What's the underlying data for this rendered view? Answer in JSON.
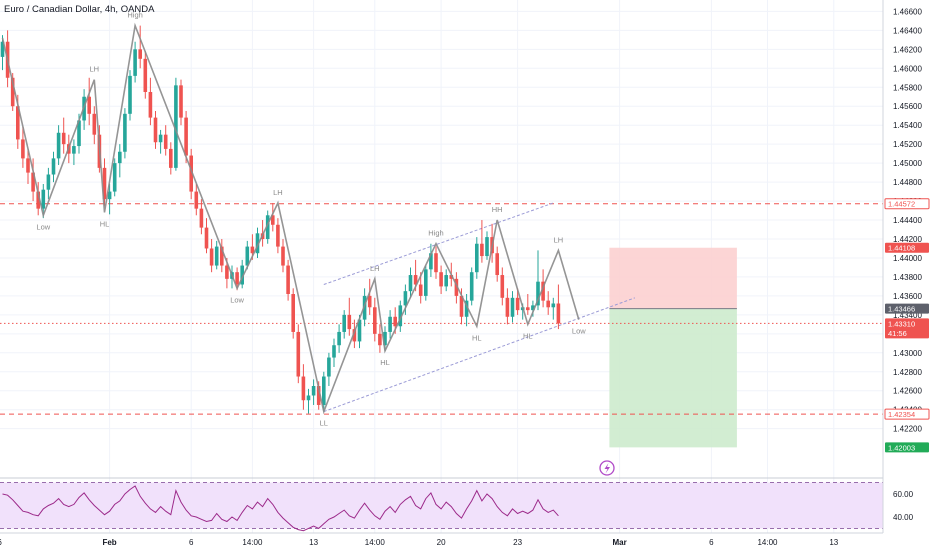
{
  "header": {
    "title": "Euro / Canadian Dollar, 4h, OANDA"
  },
  "colors": {
    "bull": "#26a69a",
    "bear": "#ef5350",
    "zigzag": "#8a8a8a",
    "channel": "#9b9bd6",
    "level": "#ef5350",
    "rsi_line": "#9c2a8a",
    "rsi_band": "#f1e1fb",
    "stop_zone": "#fcd0d0",
    "target_zone": "#cdebcd"
  },
  "chart_data": [
    {
      "type": "candlestick",
      "ylim": [
        1.4168,
        1.4672
      ],
      "x_index_range": [
        0,
        175
      ],
      "y_ticks": [
        "1.46600",
        "1.46400",
        "1.46200",
        "1.46000",
        "1.45800",
        "1.45600",
        "1.45400",
        "1.45200",
        "1.45000",
        "1.44800",
        "1.44600",
        "1.44400",
        "1.44200",
        "1.44000",
        "1.43800",
        "1.43600",
        "1.43400",
        "1.43200",
        "1.43000",
        "1.42800",
        "1.42600",
        "1.42400",
        "1.42200"
      ],
      "x_ticks": [
        {
          "i": -1,
          "label": "26"
        },
        {
          "i": 21,
          "label": "Feb"
        },
        {
          "i": 37,
          "label": "6"
        },
        {
          "i": 49,
          "label": "14:00"
        },
        {
          "i": 61,
          "label": "13"
        },
        {
          "i": 73,
          "label": "14:00"
        },
        {
          "i": 86,
          "label": "20"
        },
        {
          "i": 101,
          "label": "23"
        },
        {
          "i": 121,
          "label": "Mar"
        },
        {
          "i": 139,
          "label": "6"
        },
        {
          "i": 150,
          "label": "14:00"
        },
        {
          "i": 163,
          "label": "13"
        }
      ],
      "zigzag": [
        {
          "i": 0,
          "v": 1.4632
        },
        {
          "i": 8,
          "v": 1.4445
        },
        {
          "i": 18,
          "v": 1.4588
        },
        {
          "i": 20,
          "v": 1.4448
        },
        {
          "i": 26,
          "v": 1.4645
        },
        {
          "i": 46,
          "v": 1.4368
        },
        {
          "i": 54,
          "v": 1.4458
        },
        {
          "i": 63,
          "v": 1.4238
        },
        {
          "i": 73,
          "v": 1.4378
        },
        {
          "i": 75,
          "v": 1.4302
        },
        {
          "i": 85,
          "v": 1.4415
        },
        {
          "i": 93,
          "v": 1.4328
        },
        {
          "i": 97,
          "v": 1.444
        },
        {
          "i": 103,
          "v": 1.433
        },
        {
          "i": 109,
          "v": 1.4408
        },
        {
          "i": 113,
          "v": 1.4335
        }
      ],
      "pivot_labels": [
        {
          "text": "High",
          "i": 26,
          "v": 1.4645,
          "pos": "above"
        },
        {
          "text": "LH",
          "i": 18,
          "v": 1.4588,
          "pos": "above"
        },
        {
          "text": "Low",
          "i": 8,
          "v": 1.4445,
          "pos": "below"
        },
        {
          "text": "HL",
          "i": 20,
          "v": 1.4448,
          "pos": "below"
        },
        {
          "text": "LH",
          "i": 54,
          "v": 1.4458,
          "pos": "above"
        },
        {
          "text": "Low",
          "i": 46,
          "v": 1.4368,
          "pos": "below"
        },
        {
          "text": "LL",
          "i": 63,
          "v": 1.4238,
          "pos": "below"
        },
        {
          "text": "LH",
          "i": 73,
          "v": 1.4378,
          "pos": "above"
        },
        {
          "text": "HL",
          "i": 75,
          "v": 1.4302,
          "pos": "below"
        },
        {
          "text": "High",
          "i": 85,
          "v": 1.4415,
          "pos": "above"
        },
        {
          "text": "HL",
          "i": 93,
          "v": 1.4328,
          "pos": "below"
        },
        {
          "text": "HH",
          "i": 97,
          "v": 1.444,
          "pos": "above"
        },
        {
          "text": "HL",
          "i": 103,
          "v": 1.433,
          "pos": "below"
        },
        {
          "text": "LH",
          "i": 109,
          "v": 1.4408,
          "pos": "above"
        },
        {
          "text": "Low",
          "i": 113,
          "v": 1.4335,
          "pos": "below"
        }
      ],
      "channel": [
        {
          "name": "upper",
          "from": {
            "i": 63,
            "v": 1.4372
          },
          "to": {
            "i": 108,
            "v": 1.4458
          }
        },
        {
          "name": "lower",
          "from": {
            "i": 63,
            "v": 1.4238
          },
          "to": {
            "i": 124,
            "v": 1.4358
          }
        }
      ],
      "levels": [
        {
          "v": 1.44572,
          "label": "1.44572",
          "style": "dashed"
        },
        {
          "v": 1.42354,
          "label": "1.42354",
          "style": "dashed"
        },
        {
          "v": 1.4331,
          "label": "1.43310",
          "style": "dotted"
        }
      ],
      "price_tags": [
        {
          "v": 1.44572,
          "label": "1.44572",
          "bg": "#ffffff",
          "fg": "#ef5350",
          "border": "#ef5350"
        },
        {
          "v": 1.44108,
          "label": "1.44108",
          "bg": "#ef5350",
          "fg": "#ffffff"
        },
        {
          "v": 1.43466,
          "label": "1.43466",
          "bg": "#5d606b",
          "fg": "#ffffff"
        },
        {
          "v": 1.4331,
          "label": "1.43310",
          "sub": "41:56",
          "bg": "#ef5350",
          "fg": "#ffffff"
        },
        {
          "v": 1.42354,
          "label": "1.42354",
          "bg": "#ffffff",
          "fg": "#ef5350",
          "border": "#ef5350"
        },
        {
          "v": 1.42003,
          "label": "1.42003",
          "bg": "#22ab58",
          "fg": "#ffffff"
        }
      ],
      "position": {
        "from_i": 119,
        "to_i": 144,
        "stop": 1.44108,
        "entry": 1.43466,
        "target": 1.42003
      },
      "candles": [
        [
          1.4612,
          1.4635,
          1.4598,
          1.4628
        ],
        [
          1.4628,
          1.464,
          1.458,
          1.459
        ],
        [
          1.459,
          1.4595,
          1.4555,
          1.456
        ],
        [
          1.456,
          1.4572,
          1.4515,
          1.4525
        ],
        [
          1.4525,
          1.4538,
          1.4495,
          1.4505
        ],
        [
          1.4505,
          1.4515,
          1.4478,
          1.449
        ],
        [
          1.449,
          1.4505,
          1.446,
          1.447
        ],
        [
          1.447,
          1.448,
          1.4445,
          1.4452
        ],
        [
          1.4452,
          1.4478,
          1.4442,
          1.4472
        ],
        [
          1.4472,
          1.4495,
          1.4462,
          1.4488
        ],
        [
          1.4488,
          1.4512,
          1.448,
          1.4505
        ],
        [
          1.4505,
          1.454,
          1.4498,
          1.4532
        ],
        [
          1.4532,
          1.4548,
          1.451,
          1.452
        ],
        [
          1.452,
          1.453,
          1.45,
          1.451
        ],
        [
          1.451,
          1.4525,
          1.4498,
          1.4518
        ],
        [
          1.4518,
          1.4552,
          1.451,
          1.4545
        ],
        [
          1.4545,
          1.4578,
          1.4535,
          1.457
        ],
        [
          1.457,
          1.459,
          1.454,
          1.4552
        ],
        [
          1.4552,
          1.456,
          1.452,
          1.453
        ],
        [
          1.453,
          1.454,
          1.449,
          1.4495
        ],
        [
          1.4495,
          1.4505,
          1.4455,
          1.4462
        ],
        [
          1.4462,
          1.4478,
          1.4446,
          1.447
        ],
        [
          1.447,
          1.4505,
          1.4465,
          1.45
        ],
        [
          1.45,
          1.452,
          1.4485,
          1.4512
        ],
        [
          1.4512,
          1.4558,
          1.4505,
          1.4552
        ],
        [
          1.4552,
          1.4598,
          1.4545,
          1.4592
        ],
        [
          1.4592,
          1.4628,
          1.4585,
          1.462
        ],
        [
          1.462,
          1.4645,
          1.46,
          1.461
        ],
        [
          1.461,
          1.4618,
          1.4568,
          1.4575
        ],
        [
          1.4575,
          1.459,
          1.454,
          1.4548
        ],
        [
          1.4548,
          1.4555,
          1.4515,
          1.4522
        ],
        [
          1.4522,
          1.4535,
          1.451,
          1.453
        ],
        [
          1.453,
          1.454,
          1.4508,
          1.4515
        ],
        [
          1.4515,
          1.4522,
          1.4488,
          1.4495
        ],
        [
          1.4495,
          1.459,
          1.4492,
          1.4582
        ],
        [
          1.4582,
          1.4588,
          1.454,
          1.4548
        ],
        [
          1.4548,
          1.4555,
          1.45,
          1.4508
        ],
        [
          1.4508,
          1.4515,
          1.4462,
          1.447
        ],
        [
          1.447,
          1.4478,
          1.4445,
          1.4452
        ],
        [
          1.4452,
          1.4462,
          1.4425,
          1.4432
        ],
        [
          1.4432,
          1.4442,
          1.4405,
          1.441
        ],
        [
          1.441,
          1.442,
          1.4385,
          1.4392
        ],
        [
          1.4392,
          1.4418,
          1.4388,
          1.4412
        ],
        [
          1.4412,
          1.442,
          1.4385,
          1.4392
        ],
        [
          1.4392,
          1.44,
          1.4368,
          1.4378
        ],
        [
          1.4378,
          1.4392,
          1.4368,
          1.4385
        ],
        [
          1.4385,
          1.439,
          1.4366,
          1.4372
        ],
        [
          1.4372,
          1.4398,
          1.4368,
          1.4392
        ],
        [
          1.4392,
          1.4418,
          1.4388,
          1.4412
        ],
        [
          1.4412,
          1.4425,
          1.4398,
          1.4405
        ],
        [
          1.4405,
          1.4432,
          1.44,
          1.4426
        ],
        [
          1.4426,
          1.444,
          1.4412,
          1.442
        ],
        [
          1.442,
          1.445,
          1.4415,
          1.4445
        ],
        [
          1.4445,
          1.4458,
          1.4428,
          1.4435
        ],
        [
          1.4435,
          1.4442,
          1.4405,
          1.4412
        ],
        [
          1.4412,
          1.442,
          1.4385,
          1.4392
        ],
        [
          1.4392,
          1.4398,
          1.4355,
          1.4362
        ],
        [
          1.4362,
          1.4368,
          1.4315,
          1.4322
        ],
        [
          1.4322,
          1.433,
          1.4268,
          1.4275
        ],
        [
          1.4275,
          1.4288,
          1.424,
          1.425
        ],
        [
          1.425,
          1.4262,
          1.4236,
          1.4255
        ],
        [
          1.4255,
          1.4272,
          1.4245,
          1.4265
        ],
        [
          1.4265,
          1.427,
          1.424,
          1.4245
        ],
        [
          1.4245,
          1.428,
          1.4238,
          1.4275
        ],
        [
          1.4275,
          1.43,
          1.4265,
          1.4295
        ],
        [
          1.4295,
          1.4315,
          1.4285,
          1.4308
        ],
        [
          1.4308,
          1.433,
          1.43,
          1.4322
        ],
        [
          1.4322,
          1.4345,
          1.4315,
          1.434
        ],
        [
          1.434,
          1.4358,
          1.4318,
          1.4325
        ],
        [
          1.4325,
          1.4335,
          1.4305,
          1.4312
        ],
        [
          1.4312,
          1.434,
          1.4305,
          1.4335
        ],
        [
          1.4335,
          1.4368,
          1.4328,
          1.436
        ],
        [
          1.436,
          1.4378,
          1.434,
          1.4348
        ],
        [
          1.4348,
          1.4358,
          1.4312,
          1.432
        ],
        [
          1.432,
          1.433,
          1.43,
          1.4308
        ],
        [
          1.4308,
          1.4328,
          1.4302,
          1.4322
        ],
        [
          1.4322,
          1.4345,
          1.4315,
          1.4338
        ],
        [
          1.4338,
          1.4348,
          1.432,
          1.4328
        ],
        [
          1.4328,
          1.4355,
          1.4322,
          1.435
        ],
        [
          1.435,
          1.4372,
          1.434,
          1.4365
        ],
        [
          1.4365,
          1.439,
          1.4358,
          1.4382
        ],
        [
          1.4382,
          1.4398,
          1.4365,
          1.4372
        ],
        [
          1.4372,
          1.4385,
          1.4352,
          1.436
        ],
        [
          1.436,
          1.4392,
          1.4355,
          1.4388
        ],
        [
          1.4388,
          1.4415,
          1.438,
          1.4405
        ],
        [
          1.4405,
          1.4412,
          1.4378,
          1.4385
        ],
        [
          1.4385,
          1.4392,
          1.4362,
          1.437
        ],
        [
          1.437,
          1.4388,
          1.4365,
          1.4382
        ],
        [
          1.4382,
          1.4395,
          1.437,
          1.4378
        ],
        [
          1.4378,
          1.4385,
          1.4352,
          1.436
        ],
        [
          1.436,
          1.4368,
          1.433,
          1.4338
        ],
        [
          1.4338,
          1.4362,
          1.4328,
          1.4355
        ],
        [
          1.4355,
          1.439,
          1.435,
          1.4385
        ],
        [
          1.4385,
          1.4422,
          1.4378,
          1.4415
        ],
        [
          1.4415,
          1.444,
          1.4395,
          1.4402
        ],
        [
          1.4402,
          1.4428,
          1.4398,
          1.4422
        ],
        [
          1.4422,
          1.4436,
          1.4395,
          1.4405
        ],
        [
          1.4405,
          1.4412,
          1.4375,
          1.4382
        ],
        [
          1.4382,
          1.439,
          1.435,
          1.4358
        ],
        [
          1.4358,
          1.4368,
          1.433,
          1.4338
        ],
        [
          1.4338,
          1.4365,
          1.4332,
          1.4358
        ],
        [
          1.4358,
          1.4368,
          1.434,
          1.4345
        ],
        [
          1.4345,
          1.4352,
          1.4335,
          1.4348
        ],
        [
          1.4348,
          1.4362,
          1.434,
          1.4345
        ],
        [
          1.4345,
          1.4355,
          1.4338,
          1.435
        ],
        [
          1.435,
          1.4408,
          1.4345,
          1.4375
        ],
        [
          1.4375,
          1.4388,
          1.4348,
          1.4355
        ],
        [
          1.4355,
          1.4365,
          1.434,
          1.4348
        ],
        [
          1.4348,
          1.4358,
          1.4335,
          1.4352
        ],
        [
          1.4352,
          1.4372,
          1.4325,
          1.4331
        ]
      ]
    },
    {
      "type": "line",
      "name": "RSI",
      "ylim": [
        26,
        74
      ],
      "y_ticks": [
        60.0,
        40.0
      ],
      "band": [
        30,
        70
      ],
      "values": [
        60,
        59,
        55,
        50,
        45,
        44,
        42,
        41,
        47,
        50,
        52,
        56,
        51,
        49,
        51,
        57,
        61,
        55,
        50,
        46,
        42,
        45,
        51,
        54,
        60,
        64,
        67,
        58,
        52,
        47,
        44,
        49,
        45,
        42,
        63,
        53,
        46,
        41,
        40,
        38,
        36,
        37,
        43,
        38,
        36,
        40,
        37,
        44,
        50,
        47,
        53,
        49,
        56,
        51,
        44,
        39,
        35,
        31,
        29,
        28,
        30,
        32,
        30,
        34,
        38,
        40,
        43,
        46,
        41,
        39,
        46,
        52,
        46,
        41,
        38,
        45,
        49,
        44,
        51,
        55,
        58,
        50,
        47,
        56,
        61,
        51,
        47,
        53,
        49,
        43,
        39,
        47,
        54,
        63,
        54,
        60,
        56,
        49,
        44,
        41,
        47,
        43,
        45,
        43,
        46,
        55,
        47,
        44,
        46,
        41
      ]
    }
  ]
}
